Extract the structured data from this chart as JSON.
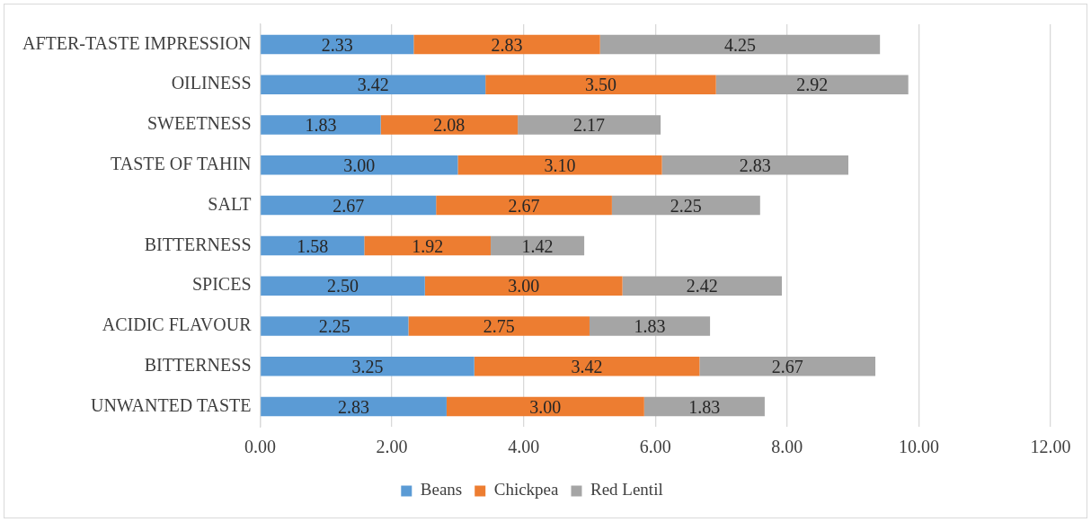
{
  "chart_data": {
    "type": "bar",
    "orientation": "horizontal",
    "stacked": true,
    "categories": [
      "AFTER-TASTE IMPRESSION",
      "OILINESS",
      "SWEETNESS",
      "TASTE OF TAHIN",
      "SALT",
      "BITTERNESS",
      "SPICES",
      "ACIDIC FLAVOUR",
      "BITTERNESS",
      "UNWANTED TASTE"
    ],
    "series": [
      {
        "name": "Beans",
        "color": "#5b9bd5",
        "values": [
          2.33,
          3.42,
          1.83,
          3.0,
          2.67,
          1.58,
          2.5,
          2.25,
          3.25,
          2.83
        ],
        "value_labels": [
          "2.33",
          "3.42",
          "1.83",
          "3.00",
          "2.67",
          "1.58",
          "2.50",
          "2.25",
          "3.25",
          "2.83"
        ]
      },
      {
        "name": "Chickpea",
        "color": "#ed7d31",
        "values": [
          2.83,
          3.5,
          2.08,
          3.1,
          2.67,
          1.92,
          3.0,
          2.75,
          3.42,
          3.0
        ],
        "value_labels": [
          "2.83",
          "3.50",
          "2.08",
          "3.10",
          "2.67",
          "1.92",
          "3.00",
          "2.75",
          "3.42",
          "3.00"
        ]
      },
      {
        "name": "Red Lentil",
        "color": "#a5a5a5",
        "values": [
          4.25,
          2.92,
          2.17,
          2.83,
          2.25,
          1.42,
          2.42,
          1.83,
          2.67,
          1.83
        ],
        "value_labels": [
          "4.25",
          "2.92",
          "2.17",
          "2.83",
          "2.25",
          "1.42",
          "2.42",
          "1.83",
          "2.67",
          "1.83"
        ]
      }
    ],
    "xlim": [
      0,
      12
    ],
    "xticks": [
      {
        "value": 0,
        "label": "0.00"
      },
      {
        "value": 2,
        "label": "2.00"
      },
      {
        "value": 4,
        "label": "4.00"
      },
      {
        "value": 6,
        "label": "6.00"
      },
      {
        "value": 8,
        "label": "8.00"
      },
      {
        "value": 10,
        "label": "10.00"
      },
      {
        "value": 12,
        "label": "12.00"
      }
    ],
    "grid": "x",
    "legend": "bottom"
  }
}
